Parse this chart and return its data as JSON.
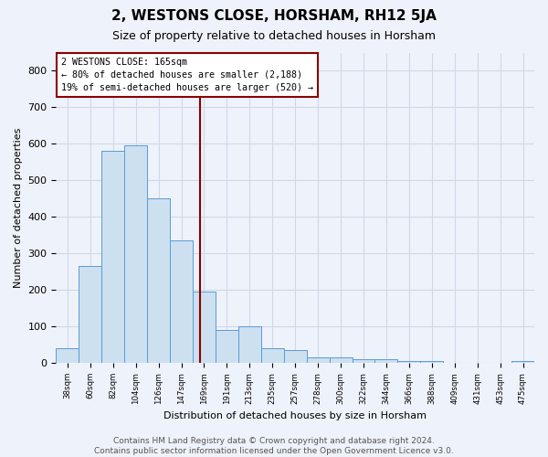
{
  "title": "2, WESTONS CLOSE, HORSHAM, RH12 5JA",
  "subtitle": "Size of property relative to detached houses in Horsham",
  "xlabel": "Distribution of detached houses by size in Horsham",
  "ylabel": "Number of detached properties",
  "categories": [
    "38sqm",
    "60sqm",
    "82sqm",
    "104sqm",
    "126sqm",
    "147sqm",
    "169sqm",
    "191sqm",
    "213sqm",
    "235sqm",
    "257sqm",
    "278sqm",
    "300sqm",
    "322sqm",
    "344sqm",
    "366sqm",
    "388sqm",
    "409sqm",
    "431sqm",
    "453sqm",
    "475sqm"
  ],
  "values": [
    40,
    265,
    580,
    595,
    450,
    335,
    195,
    90,
    100,
    40,
    35,
    15,
    15,
    10,
    10,
    5,
    5,
    0,
    0,
    0,
    5
  ],
  "bar_color": "#cce0f0",
  "bar_edge_color": "#5b9bd5",
  "marker_line_color": "#8b0000",
  "annotation_line1": "2 WESTONS CLOSE: 165sqm",
  "annotation_line2": "← 80% of detached houses are smaller (2,188)",
  "annotation_line3": "19% of semi-detached houses are larger (520) →",
  "annotation_box_color": "#ffffff",
  "annotation_box_edge_color": "#8b0000",
  "ylim": [
    0,
    850
  ],
  "yticks": [
    0,
    100,
    200,
    300,
    400,
    500,
    600,
    700,
    800
  ],
  "grid_color": "#d0d8e8",
  "bg_color": "#eef2fa",
  "footer_text": "Contains HM Land Registry data © Crown copyright and database right 2024.\nContains public sector information licensed under the Open Government Licence v3.0.",
  "title_fontsize": 11,
  "subtitle_fontsize": 9,
  "footer_fontsize": 6.5,
  "property_sqm": 165,
  "bin_starts": [
    38,
    60,
    82,
    104,
    126,
    147,
    169,
    191,
    213,
    235,
    257,
    278,
    300,
    322,
    344,
    366,
    388,
    409,
    431,
    453,
    475
  ]
}
